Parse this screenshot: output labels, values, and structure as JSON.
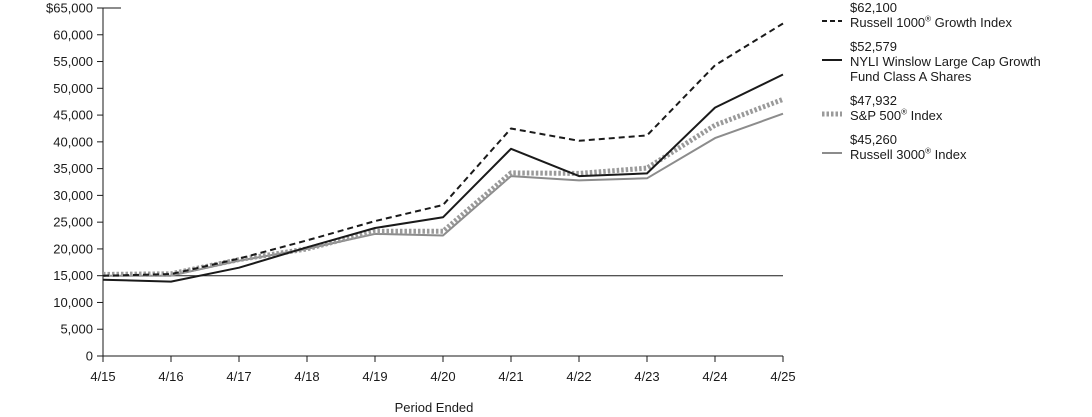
{
  "chart_data": {
    "type": "line",
    "title": "",
    "xlabel": "Period Ended",
    "ylabel": "",
    "categories": [
      "4/15",
      "4/16",
      "4/17",
      "4/18",
      "4/19",
      "4/20",
      "4/21",
      "4/22",
      "4/23",
      "4/24",
      "4/25"
    ],
    "y_ticks": [
      "$65,000",
      "60,000",
      "55,000",
      "50,000",
      "45,000",
      "40,000",
      "35,000",
      "30,000",
      "25,000",
      "20,000",
      "15,000",
      "10,000",
      "5,000",
      "0"
    ],
    "ylim": [
      0,
      65000
    ],
    "reference_line": 15000,
    "grid": false,
    "legend_position": "right",
    "series": [
      {
        "name_prefix": "Russell 1000",
        "name_suffix": " Growth Index",
        "end_value": "$62,100",
        "style": "dashed",
        "color": "#1a1a1a",
        "values": [
          15000,
          15300,
          18200,
          21600,
          25200,
          28200,
          42500,
          40200,
          41200,
          54300,
          62100
        ]
      },
      {
        "name_prefix": "NYLI Winslow Large Cap Growth",
        "name_line2": "Fund Class A Shares",
        "end_value": "$52,579",
        "style": "solid",
        "color": "#1a1a1a",
        "values": [
          14250,
          13900,
          16500,
          20300,
          23900,
          25900,
          38700,
          33600,
          34100,
          46400,
          52579
        ]
      },
      {
        "name_prefix": "S&P 500",
        "name_suffix": " Index",
        "end_value": "$47,932",
        "style": "dotted",
        "color": "#9a9a9a",
        "values": [
          15250,
          15350,
          18000,
          20000,
          23300,
          23300,
          34200,
          34100,
          35100,
          43100,
          47932
        ]
      },
      {
        "name_prefix": "Russell 3000",
        "name_suffix": " Index",
        "end_value": "$45,260",
        "style": "solid",
        "color": "#8c8c8c",
        "values": [
          15000,
          15000,
          17800,
          20000,
          22800,
          22500,
          33600,
          32800,
          33200,
          40700,
          45260
        ]
      }
    ]
  },
  "registered_mark": "®"
}
